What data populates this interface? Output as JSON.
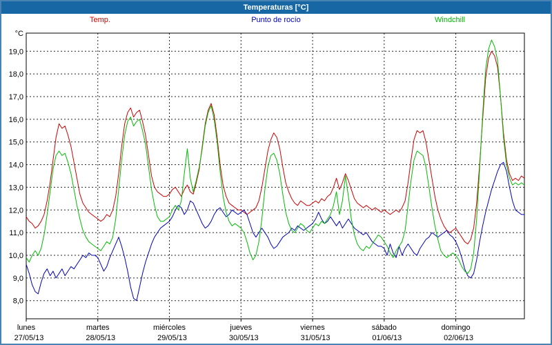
{
  "window": {
    "title": "Temperaturas [°C]"
  },
  "ui_colors": {
    "titlebar_bg": "#1767a5",
    "titlebar_text": "#ffffff",
    "window_border": "#4883b4",
    "plot_border": "#000000",
    "grid": "#222222"
  },
  "chart_data": {
    "type": "line",
    "title": "Temperaturas [°C]",
    "ylabel": "°C",
    "ylim": [
      7.2,
      19.8
    ],
    "yticks": [
      8,
      9,
      10,
      11,
      12,
      13,
      14,
      15,
      16,
      17,
      18,
      19
    ],
    "ytick_labels": [
      "8,0",
      "9,0",
      "10,0",
      "11,0",
      "12,0",
      "13,0",
      "14,0",
      "15,0",
      "16,0",
      "17,0",
      "18,0",
      "19,0"
    ],
    "grid": true,
    "legend_position": "top",
    "x_unit": "hours",
    "points_per_day": 24,
    "days": [
      {
        "name": "lunes",
        "date": "27/05/13"
      },
      {
        "name": "martes",
        "date": "28/05/13"
      },
      {
        "name": "miércoles",
        "date": "29/05/13"
      },
      {
        "name": "jueves",
        "date": "30/05/13"
      },
      {
        "name": "viernes",
        "date": "31/05/13"
      },
      {
        "name": "sábado",
        "date": "01/06/13"
      },
      {
        "name": "domingo",
        "date": "02/06/13"
      }
    ],
    "series": [
      {
        "name": "Temp.",
        "color": "#cc0000",
        "values": [
          11.7,
          11.5,
          11.4,
          11.2,
          11.3,
          11.5,
          11.8,
          12.4,
          13.2,
          14.2,
          15.2,
          15.8,
          15.6,
          15.7,
          15.3,
          14.8,
          14.1,
          13.4,
          12.7,
          12.3,
          12.1,
          11.9,
          11.8,
          11.7,
          11.6,
          11.5,
          11.6,
          11.8,
          11.7,
          12.0,
          12.6,
          13.6,
          14.8,
          15.8,
          16.3,
          16.5,
          16.1,
          16.3,
          16.4,
          15.9,
          15.3,
          14.4,
          13.5,
          13.0,
          12.8,
          12.7,
          12.6,
          12.6,
          12.7,
          12.9,
          13.0,
          12.8,
          12.6,
          12.9,
          13.1,
          12.8,
          12.7,
          13.2,
          13.8,
          14.8,
          15.8,
          16.4,
          16.7,
          16.2,
          15.2,
          14.0,
          13.1,
          12.6,
          12.3,
          12.2,
          12.1,
          12.0,
          12.0,
          11.9,
          11.8,
          11.9,
          12.0,
          12.1,
          12.4,
          13.0,
          13.8,
          14.6,
          15.1,
          15.4,
          15.2,
          14.7,
          13.9,
          13.2,
          12.8,
          12.5,
          12.3,
          12.2,
          12.4,
          12.3,
          12.2,
          12.2,
          12.3,
          12.4,
          12.3,
          12.5,
          12.4,
          12.6,
          12.7,
          13.0,
          13.4,
          12.9,
          13.2,
          13.6,
          13.3,
          12.9,
          12.5,
          12.3,
          12.2,
          12.1,
          12.2,
          12.1,
          12.0,
          12.1,
          12.0,
          11.9,
          12.0,
          11.9,
          11.8,
          11.9,
          12.0,
          11.9,
          12.1,
          12.4,
          13.2,
          14.2,
          15.1,
          15.5,
          15.4,
          15.5,
          15.0,
          14.2,
          13.4,
          12.6,
          12.0,
          11.6,
          11.3,
          11.1,
          11.0,
          11.1,
          11.2,
          11.0,
          10.8,
          10.6,
          10.5,
          10.7,
          11.2,
          12.3,
          14.0,
          16.0,
          17.8,
          18.7,
          19.0,
          18.8,
          18.3,
          17.0,
          15.4,
          14.2,
          13.6,
          13.3,
          13.4,
          13.3,
          13.5,
          13.4
        ]
      },
      {
        "name": "Punto de rocío",
        "color": "#0000bb",
        "values": [
          9.6,
          9.2,
          8.7,
          8.4,
          8.3,
          8.8,
          9.2,
          9.4,
          9.1,
          9.3,
          9.0,
          9.2,
          9.4,
          9.1,
          9.3,
          9.5,
          9.4,
          9.6,
          9.8,
          10.0,
          9.9,
          10.1,
          10.0,
          10.0,
          9.9,
          9.6,
          9.3,
          9.5,
          9.9,
          10.2,
          10.5,
          10.8,
          10.4,
          9.9,
          9.3,
          8.6,
          8.1,
          8.0,
          8.6,
          9.2,
          9.7,
          10.1,
          10.5,
          10.8,
          11.0,
          11.2,
          11.3,
          11.4,
          11.5,
          11.7,
          12.0,
          12.2,
          12.1,
          11.8,
          12.0,
          12.4,
          12.3,
          12.0,
          11.7,
          11.4,
          11.2,
          11.3,
          11.5,
          11.8,
          12.0,
          12.1,
          11.9,
          11.7,
          11.8,
          12.0,
          11.9,
          11.8,
          11.9,
          12.0,
          11.8,
          11.4,
          11.0,
          10.8,
          11.0,
          11.2,
          11.0,
          10.8,
          10.5,
          10.3,
          10.4,
          10.6,
          10.8,
          10.9,
          11.0,
          11.2,
          11.1,
          11.3,
          11.2,
          11.1,
          11.2,
          11.3,
          11.4,
          11.6,
          11.9,
          11.6,
          11.4,
          11.5,
          11.7,
          11.5,
          11.3,
          11.5,
          11.2,
          11.4,
          11.6,
          11.4,
          11.2,
          11.1,
          11.0,
          10.9,
          11.0,
          10.8,
          10.6,
          10.5,
          10.4,
          10.4,
          10.3,
          10.0,
          10.5,
          10.1,
          9.9,
          10.4,
          10.0,
          10.3,
          10.5,
          10.3,
          10.1,
          10.0,
          10.3,
          10.5,
          10.7,
          10.8,
          11.0,
          10.9,
          10.8,
          10.9,
          11.0,
          11.1,
          10.9,
          10.8,
          10.6,
          10.3,
          9.9,
          9.4,
          9.1,
          9.0,
          9.2,
          9.8,
          10.6,
          11.3,
          11.9,
          12.4,
          12.9,
          13.3,
          13.7,
          14.0,
          14.1,
          13.7,
          13.0,
          12.4,
          12.0,
          11.9,
          11.8,
          11.8
        ]
      },
      {
        "name": "Windchill",
        "color": "#00bb00",
        "values": [
          9.9,
          9.7,
          10.0,
          10.2,
          10.0,
          10.3,
          10.9,
          11.8,
          12.8,
          13.8,
          14.4,
          14.6,
          14.4,
          14.5,
          14.1,
          13.6,
          12.9,
          12.2,
          11.6,
          11.1,
          10.8,
          10.6,
          10.5,
          10.4,
          10.3,
          10.2,
          10.4,
          10.6,
          10.5,
          10.8,
          11.6,
          12.9,
          14.2,
          15.3,
          15.9,
          16.1,
          15.7,
          15.9,
          16.0,
          15.5,
          14.9,
          13.9,
          12.9,
          12.2,
          11.7,
          11.5,
          11.5,
          11.6,
          11.7,
          12.0,
          12.2,
          12.0,
          12.4,
          13.6,
          14.7,
          13.4,
          12.8,
          13.3,
          13.9,
          14.7,
          15.7,
          16.3,
          16.6,
          16.0,
          15.0,
          13.7,
          12.6,
          11.9,
          11.5,
          11.3,
          11.4,
          11.3,
          11.2,
          11.0,
          10.6,
          10.1,
          9.8,
          10.0,
          10.6,
          11.6,
          12.9,
          13.9,
          14.4,
          14.5,
          14.2,
          13.6,
          12.7,
          11.9,
          11.4,
          11.1,
          11.0,
          11.2,
          11.4,
          11.3,
          11.1,
          11.0,
          11.2,
          11.4,
          11.3,
          11.5,
          11.4,
          11.6,
          11.8,
          12.2,
          12.8,
          11.8,
          12.4,
          13.5,
          12.6,
          11.6,
          10.9,
          10.5,
          10.3,
          10.2,
          10.4,
          10.3,
          10.5,
          10.7,
          10.9,
          10.8,
          10.6,
          10.4,
          10.1,
          9.9,
          10.2,
          10.4,
          10.6,
          11.1,
          12.2,
          13.3,
          14.2,
          14.6,
          14.5,
          14.4,
          13.9,
          13.0,
          12.1,
          11.3,
          10.7,
          10.2,
          10.0,
          9.9,
          10.0,
          10.1,
          10.0,
          9.8,
          9.5,
          9.3,
          9.2,
          9.4,
          10.1,
          11.6,
          13.8,
          16.2,
          18.2,
          19.1,
          19.5,
          19.2,
          18.6,
          17.0,
          15.2,
          14.0,
          13.4,
          13.1,
          13.2,
          13.1,
          13.2,
          13.1
        ]
      }
    ]
  }
}
